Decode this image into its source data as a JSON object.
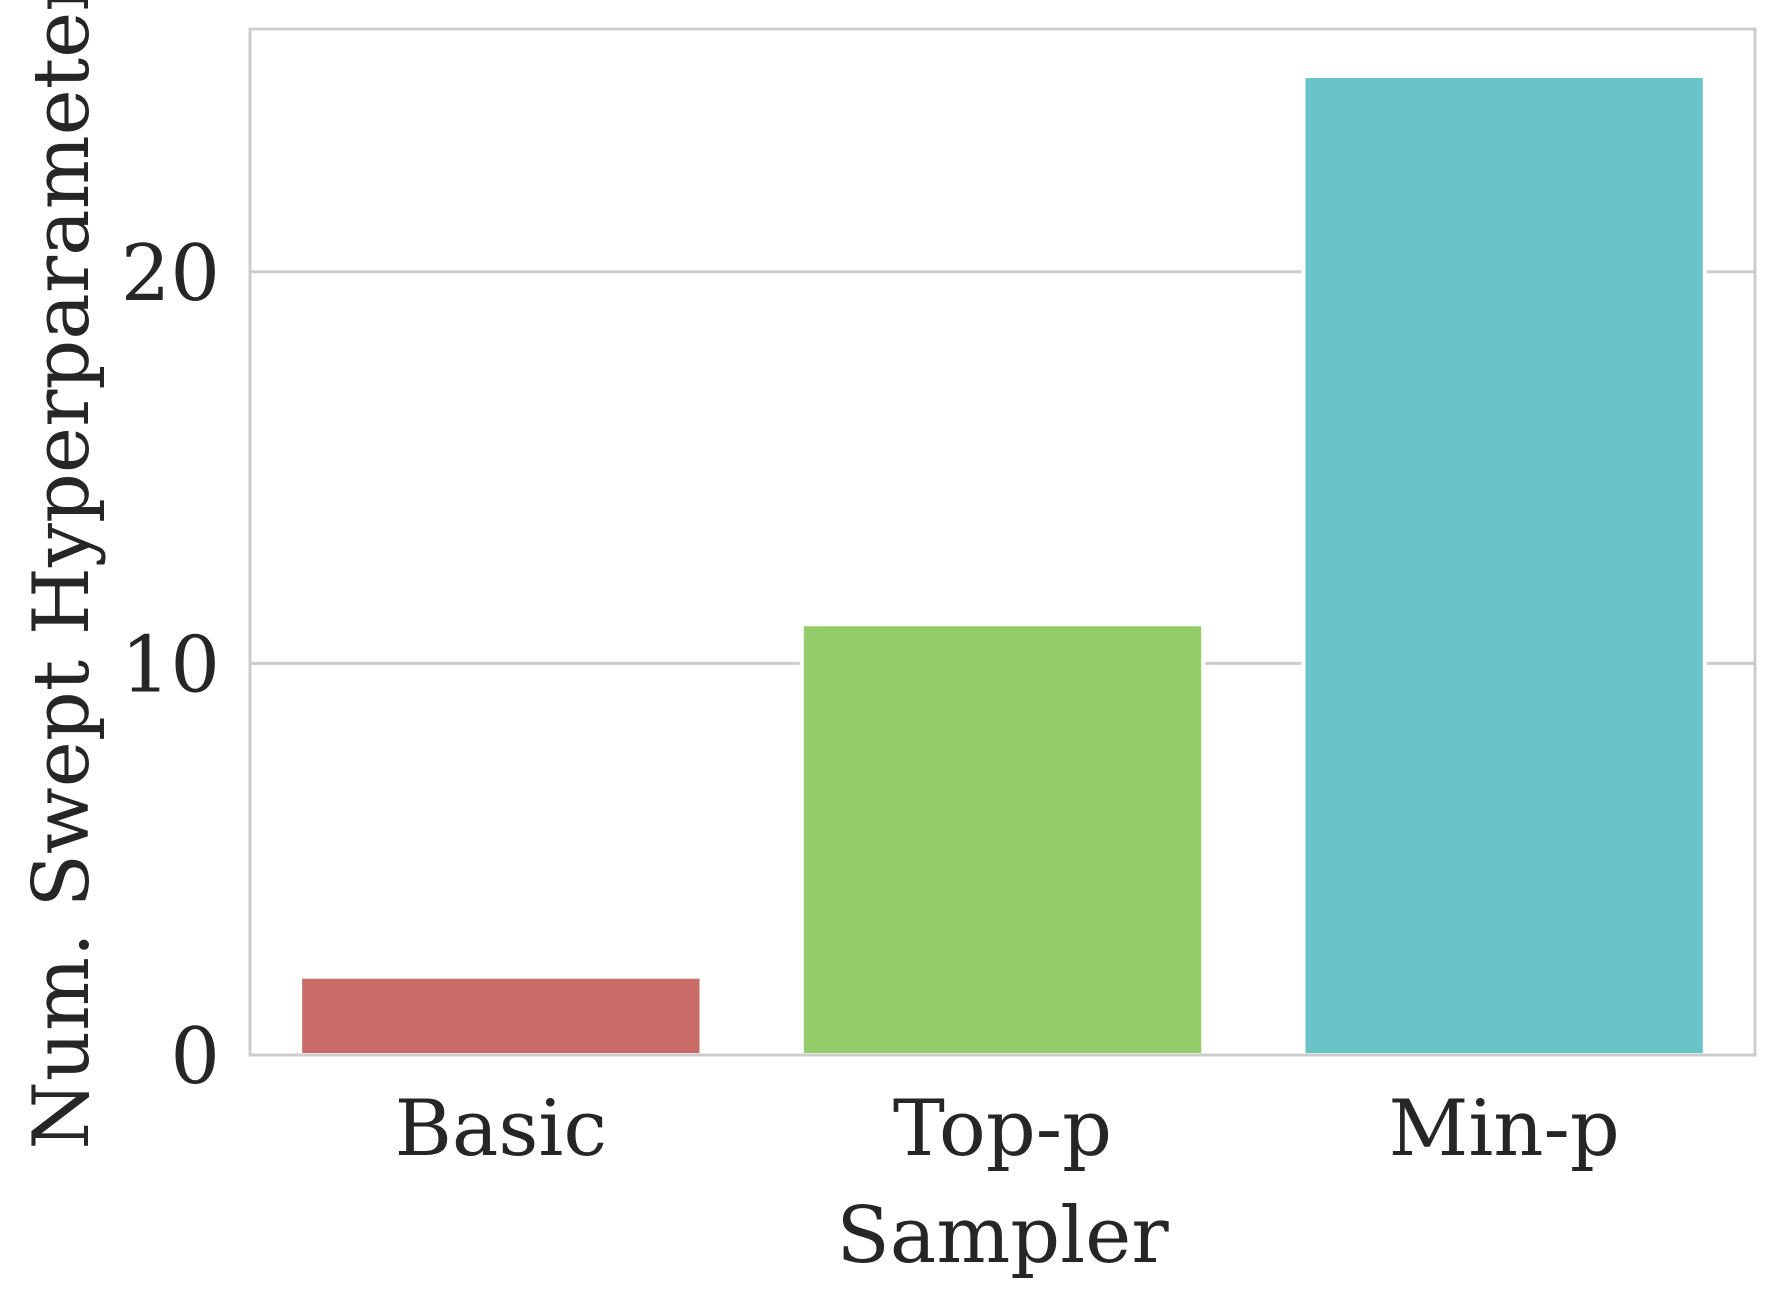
{
  "chart_data": {
    "type": "bar",
    "title": "",
    "xlabel": "Sampler",
    "ylabel": "Num. Swept Hyperparameters",
    "categories": [
      "Basic",
      "Top-p",
      "Min-p"
    ],
    "values": [
      2,
      11,
      25
    ],
    "colors": [
      "#c96b66",
      "#94cc69",
      "#69c4ca"
    ],
    "ylim": [
      0,
      26.2
    ],
    "yticks": [
      0,
      10,
      20
    ],
    "grid": "horizontal",
    "legend": "none"
  }
}
